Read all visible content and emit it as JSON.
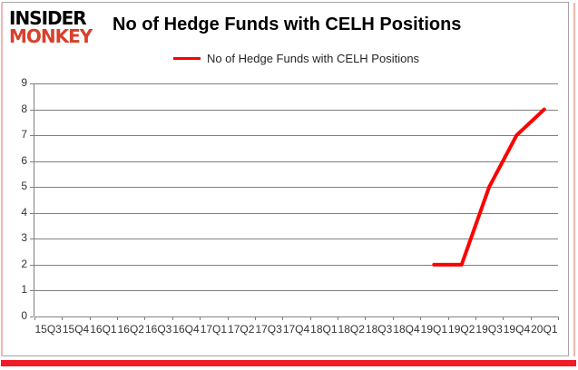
{
  "logo": {
    "line1": "INSIDER",
    "line2": "MONKEY"
  },
  "header": {
    "title": "No of Hedge Funds with CELH Positions"
  },
  "legend": {
    "label": "No of Hedge Funds with CELH Positions"
  },
  "colors": {
    "line": "#ff0000",
    "grid": "#808080",
    "axis_text": "#333333",
    "logo_red": "#d9402c",
    "accent_bottom": "#ee1c25",
    "accent_side": "#f2b6b0",
    "frame": "#a6a6a6"
  },
  "chart_data": {
    "type": "line",
    "title": "No of Hedge Funds with CELH Positions",
    "categories": [
      "15Q3",
      "15Q4",
      "16Q1",
      "16Q2",
      "16Q3",
      "16Q4",
      "17Q1",
      "17Q2",
      "17Q3",
      "17Q4",
      "18Q1",
      "18Q2",
      "18Q3",
      "18Q4",
      "19Q1",
      "19Q2",
      "19Q3",
      "19Q4",
      "20Q1"
    ],
    "series": [
      {
        "name": "No of Hedge Funds with CELH Positions",
        "color": "#ff0000",
        "values": [
          null,
          null,
          null,
          null,
          null,
          null,
          null,
          null,
          null,
          null,
          null,
          null,
          null,
          null,
          2,
          2,
          5,
          7,
          8
        ]
      }
    ],
    "xlabel": "",
    "ylabel": "",
    "ylim": [
      0,
      9
    ],
    "yticks": [
      0,
      1,
      2,
      3,
      4,
      5,
      6,
      7,
      8,
      9
    ],
    "grid": true,
    "legend_position": "top"
  }
}
